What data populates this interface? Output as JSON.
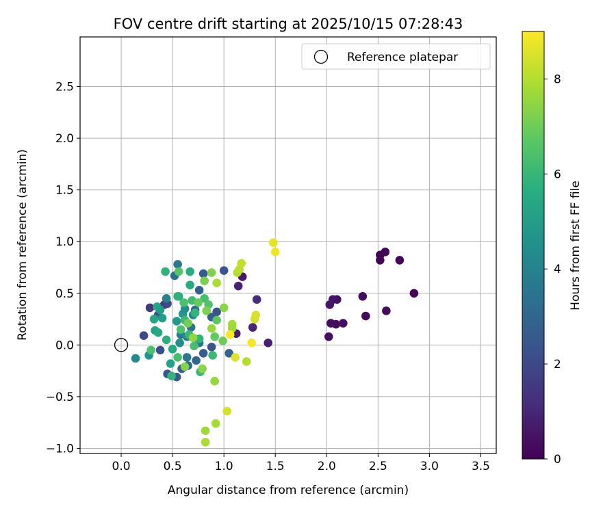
{
  "chart_data": {
    "type": "scatter",
    "title": "FOV centre drift starting at 2025/10/15 07:28:43",
    "xlabel": "Angular distance from reference (arcmin)",
    "ylabel": "Rotation from reference (arcmin)",
    "xlim": [
      -0.4,
      3.65
    ],
    "ylim": [
      -1.05,
      2.98
    ],
    "xticks": [
      0.0,
      0.5,
      1.0,
      1.5,
      2.0,
      2.5,
      3.0,
      3.5
    ],
    "xtick_labels": [
      "0.0",
      "0.5",
      "1.0",
      "1.5",
      "2.0",
      "2.5",
      "3.0",
      "3.5"
    ],
    "yticks": [
      -1.0,
      -0.5,
      0.0,
      0.5,
      1.0,
      1.5,
      2.0,
      2.5
    ],
    "ytick_labels": [
      "−1.0",
      "−0.5",
      "0.0",
      "0.5",
      "1.0",
      "1.5",
      "2.0",
      "2.5"
    ],
    "grid": true,
    "legend": {
      "position": "top-right",
      "entries": [
        {
          "label": "Reference platepar",
          "marker": "open-circle"
        }
      ]
    },
    "reference_point": {
      "x": 0.0,
      "y": 0.0
    },
    "colorbar": {
      "label": "Hours from first FF file",
      "colormap": "viridis",
      "range": [
        0,
        9
      ],
      "ticks": [
        0,
        2,
        4,
        6,
        8
      ],
      "tick_labels": [
        "0",
        "2",
        "4",
        "6",
        "8"
      ]
    },
    "points": [
      {
        "x": 2.52,
        "y": 0.87,
        "h": 0.1
      },
      {
        "x": 2.57,
        "y": 0.9,
        "h": 0.1
      },
      {
        "x": 2.52,
        "y": 0.82,
        "h": 0.1
      },
      {
        "x": 2.71,
        "y": 0.82,
        "h": 0.1
      },
      {
        "x": 2.85,
        "y": 0.5,
        "h": 0.1
      },
      {
        "x": 2.35,
        "y": 0.47,
        "h": 0.3
      },
      {
        "x": 2.58,
        "y": 0.33,
        "h": 0.3
      },
      {
        "x": 2.38,
        "y": 0.28,
        "h": 0.3
      },
      {
        "x": 2.1,
        "y": 0.44,
        "h": 0.4
      },
      {
        "x": 2.06,
        "y": 0.44,
        "h": 0.5
      },
      {
        "x": 2.03,
        "y": 0.39,
        "h": 0.5
      },
      {
        "x": 2.04,
        "y": 0.21,
        "h": 0.3
      },
      {
        "x": 2.09,
        "y": 0.2,
        "h": 0.3
      },
      {
        "x": 2.16,
        "y": 0.21,
        "h": 0.4
      },
      {
        "x": 2.02,
        "y": 0.08,
        "h": 0.4
      },
      {
        "x": 1.18,
        "y": 0.66,
        "h": 0.6
      },
      {
        "x": 1.14,
        "y": 0.57,
        "h": 0.9
      },
      {
        "x": 1.32,
        "y": 0.44,
        "h": 1.2
      },
      {
        "x": 1.28,
        "y": 0.17,
        "h": 1.0
      },
      {
        "x": 1.43,
        "y": 0.02,
        "h": 0.8
      },
      {
        "x": 1.12,
        "y": 0.11,
        "h": 0.7
      },
      {
        "x": 0.22,
        "y": 0.09,
        "h": 2.0
      },
      {
        "x": 0.28,
        "y": 0.36,
        "h": 1.5
      },
      {
        "x": 0.42,
        "y": 0.39,
        "h": 1.6
      },
      {
        "x": 0.45,
        "y": 0.4,
        "h": 2.0
      },
      {
        "x": 0.36,
        "y": 0.29,
        "h": 2.4
      },
      {
        "x": 0.38,
        "y": -0.05,
        "h": 2.2
      },
      {
        "x": 0.45,
        "y": -0.28,
        "h": 2.5
      },
      {
        "x": 0.54,
        "y": -0.31,
        "h": 2.6
      },
      {
        "x": 0.59,
        "y": -0.23,
        "h": 2.8
      },
      {
        "x": 0.65,
        "y": -0.2,
        "h": 2.9
      },
      {
        "x": 0.73,
        "y": -0.15,
        "h": 3.0
      },
      {
        "x": 0.8,
        "y": -0.08,
        "h": 2.7
      },
      {
        "x": 0.88,
        "y": -0.02,
        "h": 2.4
      },
      {
        "x": 1.0,
        "y": 0.72,
        "h": 2.4
      },
      {
        "x": 0.8,
        "y": 0.69,
        "h": 2.6
      },
      {
        "x": 0.76,
        "y": 0.53,
        "h": 2.8
      },
      {
        "x": 0.93,
        "y": 0.32,
        "h": 2.4
      },
      {
        "x": 0.88,
        "y": 0.27,
        "h": 2.7
      },
      {
        "x": 1.05,
        "y": -0.08,
        "h": 2.9
      },
      {
        "x": 0.52,
        "y": 0.67,
        "h": 3.4
      },
      {
        "x": 0.55,
        "y": 0.78,
        "h": 3.6
      },
      {
        "x": 0.72,
        "y": 0.34,
        "h": 3.2
      },
      {
        "x": 0.76,
        "y": 0.02,
        "h": 3.4
      },
      {
        "x": 0.64,
        "y": -0.12,
        "h": 3.6
      },
      {
        "x": 0.58,
        "y": 0.1,
        "h": 3.8
      },
      {
        "x": 0.68,
        "y": 0.17,
        "h": 3.3
      },
      {
        "x": 0.44,
        "y": 0.45,
        "h": 4.0
      },
      {
        "x": 0.14,
        "y": -0.13,
        "h": 4.3
      },
      {
        "x": 0.27,
        "y": -0.1,
        "h": 4.6
      },
      {
        "x": 0.48,
        "y": -0.18,
        "h": 5.2
      },
      {
        "x": 0.56,
        "y": 0.47,
        "h": 5.0
      },
      {
        "x": 0.6,
        "y": 0.3,
        "h": 4.8
      },
      {
        "x": 0.54,
        "y": 0.23,
        "h": 4.9
      },
      {
        "x": 0.62,
        "y": 0.35,
        "h": 4.5
      },
      {
        "x": 0.7,
        "y": 0.29,
        "h": 4.1
      },
      {
        "x": 0.57,
        "y": 0.02,
        "h": 4.4
      },
      {
        "x": 0.64,
        "y": 0.08,
        "h": 4.2
      },
      {
        "x": 0.5,
        "y": -0.04,
        "h": 5.5
      },
      {
        "x": 0.43,
        "y": 0.71,
        "h": 5.8
      },
      {
        "x": 0.67,
        "y": 0.71,
        "h": 5.6
      },
      {
        "x": 0.67,
        "y": 0.58,
        "h": 5.6
      },
      {
        "x": 0.32,
        "y": 0.25,
        "h": 5.3
      },
      {
        "x": 0.35,
        "y": 0.37,
        "h": 5.4
      },
      {
        "x": 0.38,
        "y": 0.34,
        "h": 5.1
      },
      {
        "x": 0.4,
        "y": 0.26,
        "h": 5.0
      },
      {
        "x": 0.44,
        "y": 0.05,
        "h": 5.7
      },
      {
        "x": 0.33,
        "y": 0.14,
        "h": 5.2
      },
      {
        "x": 0.36,
        "y": 0.12,
        "h": 5.5
      },
      {
        "x": 0.55,
        "y": 0.47,
        "h": 5.8
      },
      {
        "x": 0.72,
        "y": 0.31,
        "h": 5.9
      },
      {
        "x": 0.61,
        "y": 0.41,
        "h": 6.4
      },
      {
        "x": 0.69,
        "y": 0.43,
        "h": 6.2
      },
      {
        "x": 0.81,
        "y": 0.45,
        "h": 6.3
      },
      {
        "x": 0.85,
        "y": 0.39,
        "h": 6.5
      },
      {
        "x": 0.62,
        "y": 0.24,
        "h": 6.1
      },
      {
        "x": 0.58,
        "y": 0.15,
        "h": 6.4
      },
      {
        "x": 0.66,
        "y": 0.1,
        "h": 6.0
      },
      {
        "x": 0.76,
        "y": 0.06,
        "h": 5.9
      },
      {
        "x": 0.49,
        "y": -0.3,
        "h": 5.9
      },
      {
        "x": 0.55,
        "y": -0.12,
        "h": 6.3
      },
      {
        "x": 0.77,
        "y": -0.26,
        "h": 6.0
      },
      {
        "x": 0.29,
        "y": -0.05,
        "h": 6.4
      },
      {
        "x": 0.89,
        "y": -0.1,
        "h": 6.1
      },
      {
        "x": 0.71,
        "y": -0.01,
        "h": 6.3
      },
      {
        "x": 0.56,
        "y": 0.71,
        "h": 6.6
      },
      {
        "x": 0.75,
        "y": 0.41,
        "h": 6.9
      },
      {
        "x": 0.91,
        "y": 0.08,
        "h": 6.8
      },
      {
        "x": 0.93,
        "y": 0.24,
        "h": 6.7
      },
      {
        "x": 0.99,
        "y": 0.04,
        "h": 7.0
      },
      {
        "x": 0.81,
        "y": 0.62,
        "h": 7.2
      },
      {
        "x": 0.88,
        "y": 0.7,
        "h": 7.3
      },
      {
        "x": 1.0,
        "y": 0.36,
        "h": 7.4
      },
      {
        "x": 0.83,
        "y": 0.33,
        "h": 7.2
      },
      {
        "x": 0.65,
        "y": 0.21,
        "h": 7.1
      },
      {
        "x": 0.62,
        "y": -0.21,
        "h": 7.3
      },
      {
        "x": 0.79,
        "y": -0.23,
        "h": 7.4
      },
      {
        "x": 0.7,
        "y": 0.07,
        "h": 7.5
      },
      {
        "x": 0.88,
        "y": 0.16,
        "h": 7.6
      },
      {
        "x": 0.91,
        "y": -0.35,
        "h": 7.6
      },
      {
        "x": 0.82,
        "y": -0.83,
        "h": 7.7
      },
      {
        "x": 0.92,
        "y": -0.76,
        "h": 7.8
      },
      {
        "x": 0.82,
        "y": -0.94,
        "h": 7.9
      },
      {
        "x": 0.93,
        "y": 0.6,
        "h": 7.9
      },
      {
        "x": 1.08,
        "y": 0.2,
        "h": 7.8
      },
      {
        "x": 1.08,
        "y": 0.16,
        "h": 7.7
      },
      {
        "x": 1.22,
        "y": -0.16,
        "h": 8.0
      },
      {
        "x": 1.13,
        "y": 0.7,
        "h": 8.0
      },
      {
        "x": 1.15,
        "y": 0.73,
        "h": 8.1
      },
      {
        "x": 1.17,
        "y": 0.79,
        "h": 8.2
      },
      {
        "x": 1.3,
        "y": 0.25,
        "h": 8.4
      },
      {
        "x": 1.31,
        "y": 0.29,
        "h": 8.5
      },
      {
        "x": 1.03,
        "y": -0.64,
        "h": 8.4
      },
      {
        "x": 1.11,
        "y": -0.12,
        "h": 8.6
      },
      {
        "x": 1.48,
        "y": 0.99,
        "h": 8.7
      },
      {
        "x": 1.5,
        "y": 0.9,
        "h": 8.8
      },
      {
        "x": 1.27,
        "y": 0.02,
        "h": 8.9
      },
      {
        "x": 1.06,
        "y": 0.1,
        "h": 9.0
      }
    ]
  }
}
